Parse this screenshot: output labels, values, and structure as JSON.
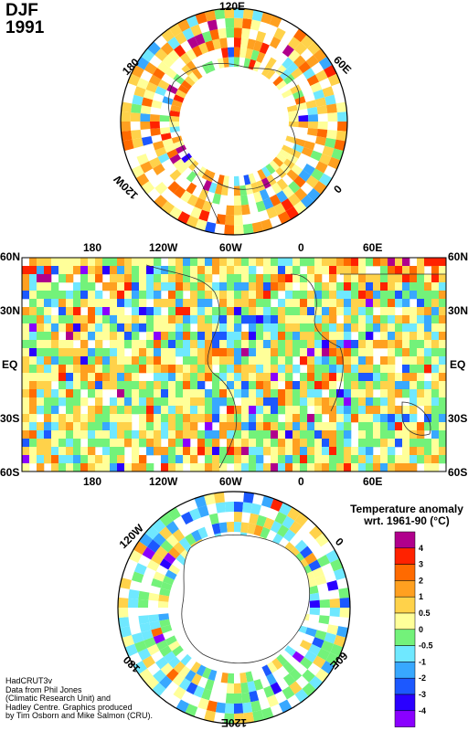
{
  "header": {
    "season": "DJF",
    "year": "1991"
  },
  "north_polar_map": {
    "labels": {
      "top": "120E",
      "upper_left": "180",
      "upper_right": "60E",
      "lower_left": "120W",
      "right": "0"
    }
  },
  "equirect_map": {
    "top_labels": [
      "180",
      "120W",
      "60W",
      "0",
      "60E"
    ],
    "bottom_labels": [
      "180",
      "120W",
      "60W",
      "0",
      "60E"
    ],
    "lat_labels": [
      "60N",
      "30N",
      "EQ",
      "30S",
      "60S"
    ]
  },
  "south_polar_map": {
    "labels": {
      "upper_left": "120W",
      "upper_right": "0",
      "lower_left": "180",
      "lower_right": "60E",
      "bottom": "120E"
    }
  },
  "legend": {
    "title_line1": "Temperature anomaly",
    "title_line2": "wrt. 1961-90  (°C)",
    "ticks": [
      "4",
      "3",
      "2",
      "1",
      "0.5",
      "0",
      "-0.5",
      "-1",
      "-2",
      "-3",
      "-4"
    ],
    "colors": [
      "#b0008c",
      "#ff2200",
      "#ff6a00",
      "#ffa020",
      "#ffd24a",
      "#ffff99",
      "#73f27a",
      "#6fe8ff",
      "#38a8ff",
      "#1c58ff",
      "#2a00ff",
      "#8a00ff"
    ]
  },
  "credits": [
    "HadCRUT3v",
    "Data from Phil Jones",
    "(Climatic Research Unit) and",
    "Hadley Centre.  Graphics produced",
    "by Tim Osborn and Mike Salmon (CRU)."
  ]
}
